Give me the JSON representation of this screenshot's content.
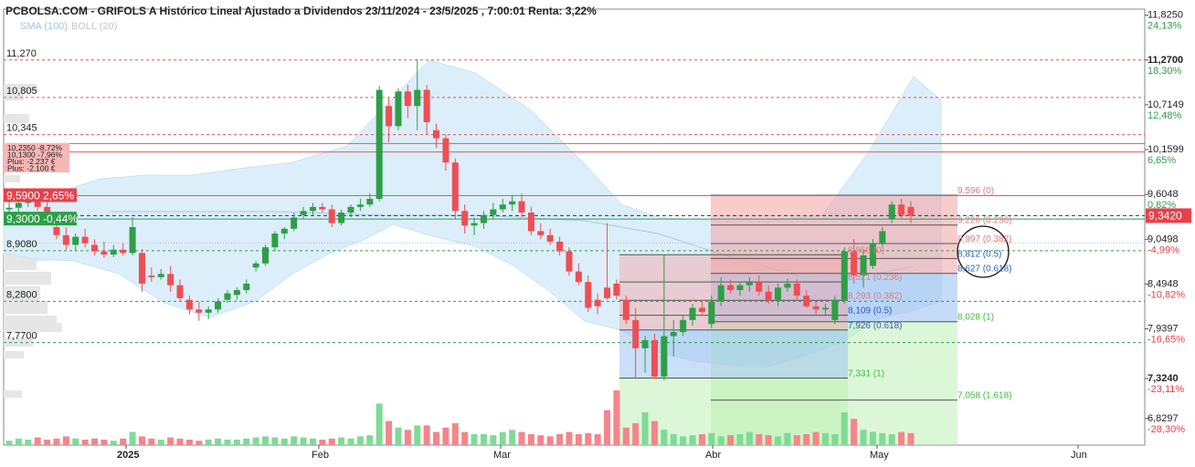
{
  "header": {
    "title": "PCBOLSA.COM - GRIFOLS A Histórico Lineal Ajustado a Dividendos 23/11/2024 - 23/5/2025 , 7:00:01 Renta: 3,22%",
    "indicator_sma": "SMA (100)",
    "indicator_boll": "BOLL (20)"
  },
  "colors": {
    "up": "#2e9e48",
    "down": "#ee4e54",
    "boll_fill": "#dceefa",
    "fib_red": "#f4a3a3",
    "fib_blue": "#9fc3f1",
    "fib_green": "#b9efb0",
    "price_badge": "#e8404a",
    "green_badge": "#2e9e48"
  },
  "chart_data": {
    "type": "candlestick",
    "ylim": [
      6.5,
      11.9
    ],
    "right_axis": {
      "prices": [
        "11,8250",
        "11,2700",
        "10,7149",
        "10,1599",
        "9,6048",
        "9,0498",
        "8,4948",
        "7,9397",
        "7,3240",
        "6,8297"
      ],
      "percents": [
        "24,13%",
        "18,30%",
        "12,48%",
        "6,65%",
        "0,82%",
        "-4,99%",
        "-10,82%",
        "-16,65%",
        "-23,11%",
        "-28,30%"
      ],
      "current_price": "9,3420"
    },
    "x_axis_labels": [
      "2025",
      "Feb",
      "Mar",
      "Abr",
      "May",
      "Jun"
    ],
    "left_levels": [
      "11,270",
      "10,805",
      "10,345",
      "8,9080",
      "8,2800",
      "7,7700"
    ],
    "left_badges": [
      {
        "label": "9,5900 2,65%",
        "color": "red"
      },
      {
        "label": "9,3000 -0,44%",
        "color": "green"
      }
    ],
    "notes": [
      "10,2350 -8,72%",
      "10,1300 -7,96%",
      "Plus: -2.237 €",
      "Plus: -2.100 €"
    ],
    "fib_upper": [
      "9,596 (0)",
      "9,226 (0.236)",
      "8,997 (0.382)",
      "8,812 (0.5)",
      "8,627 (0.618)",
      "8,028 (1)",
      "7,058 (1.618)"
    ],
    "fib_lower": [
      "8,858 (0)",
      "8,521 (0.236)",
      "8,293 (0.382)",
      "8,109 (0.5)",
      "7,926 (0.618)",
      "7,331 (1)"
    ],
    "candles": [
      {
        "o": 9.42,
        "h": 9.55,
        "l": 9.32,
        "c": 9.44
      },
      {
        "o": 9.44,
        "h": 9.58,
        "l": 9.38,
        "c": 9.5
      },
      {
        "o": 9.5,
        "h": 9.62,
        "l": 9.45,
        "c": 9.55
      },
      {
        "o": 9.55,
        "h": 9.65,
        "l": 9.4,
        "c": 9.45
      },
      {
        "o": 9.45,
        "h": 9.52,
        "l": 9.25,
        "c": 9.3
      },
      {
        "o": 9.2,
        "h": 9.35,
        "l": 9.05,
        "c": 9.1
      },
      {
        "o": 9.1,
        "h": 9.2,
        "l": 8.92,
        "c": 8.98
      },
      {
        "o": 8.98,
        "h": 9.12,
        "l": 8.9,
        "c": 9.08
      },
      {
        "o": 9.08,
        "h": 9.18,
        "l": 8.95,
        "c": 9.0
      },
      {
        "o": 8.98,
        "h": 9.05,
        "l": 8.85,
        "c": 8.9
      },
      {
        "o": 8.9,
        "h": 9.02,
        "l": 8.82,
        "c": 8.86
      },
      {
        "o": 8.86,
        "h": 8.98,
        "l": 8.83,
        "c": 8.92
      },
      {
        "o": 8.92,
        "h": 9.0,
        "l": 8.85,
        "c": 8.88
      },
      {
        "o": 8.88,
        "h": 9.32,
        "l": 8.85,
        "c": 9.2
      },
      {
        "o": 8.88,
        "h": 8.93,
        "l": 8.4,
        "c": 8.5
      },
      {
        "o": 8.6,
        "h": 8.7,
        "l": 8.52,
        "c": 8.58
      },
      {
        "o": 8.58,
        "h": 8.68,
        "l": 8.55,
        "c": 8.62
      },
      {
        "o": 8.62,
        "h": 8.72,
        "l": 8.4,
        "c": 8.48
      },
      {
        "o": 8.48,
        "h": 8.55,
        "l": 8.28,
        "c": 8.32
      },
      {
        "o": 8.3,
        "h": 8.35,
        "l": 8.12,
        "c": 8.18
      },
      {
        "o": 8.18,
        "h": 8.28,
        "l": 8.04,
        "c": 8.14
      },
      {
        "o": 8.14,
        "h": 8.22,
        "l": 8.06,
        "c": 8.18
      },
      {
        "o": 8.18,
        "h": 8.32,
        "l": 8.14,
        "c": 8.28
      },
      {
        "o": 8.3,
        "h": 8.42,
        "l": 8.26,
        "c": 8.38
      },
      {
        "o": 8.36,
        "h": 8.45,
        "l": 8.3,
        "c": 8.42
      },
      {
        "o": 8.42,
        "h": 8.55,
        "l": 8.38,
        "c": 8.5
      },
      {
        "o": 8.7,
        "h": 8.78,
        "l": 8.65,
        "c": 8.75
      },
      {
        "o": 8.75,
        "h": 8.98,
        "l": 8.72,
        "c": 8.95
      },
      {
        "o": 8.95,
        "h": 9.15,
        "l": 8.9,
        "c": 9.12
      },
      {
        "o": 9.12,
        "h": 9.2,
        "l": 9.05,
        "c": 9.18
      },
      {
        "o": 9.18,
        "h": 9.38,
        "l": 9.15,
        "c": 9.32
      },
      {
        "o": 9.35,
        "h": 9.45,
        "l": 9.3,
        "c": 9.4
      },
      {
        "o": 9.4,
        "h": 9.5,
        "l": 9.35,
        "c": 9.45
      },
      {
        "o": 9.45,
        "h": 9.5,
        "l": 9.38,
        "c": 9.42
      },
      {
        "o": 9.42,
        "h": 9.48,
        "l": 9.2,
        "c": 9.25
      },
      {
        "o": 9.25,
        "h": 9.42,
        "l": 9.22,
        "c": 9.38
      },
      {
        "o": 9.38,
        "h": 9.48,
        "l": 9.32,
        "c": 9.45
      },
      {
        "o": 9.45,
        "h": 9.55,
        "l": 9.4,
        "c": 9.48
      },
      {
        "o": 9.48,
        "h": 9.62,
        "l": 9.45,
        "c": 9.55
      },
      {
        "o": 9.55,
        "h": 10.95,
        "l": 9.52,
        "c": 10.9
      },
      {
        "o": 10.7,
        "h": 10.8,
        "l": 10.25,
        "c": 10.45
      },
      {
        "o": 10.45,
        "h": 10.92,
        "l": 10.4,
        "c": 10.88
      },
      {
        "o": 10.88,
        "h": 10.96,
        "l": 10.55,
        "c": 10.7
      },
      {
        "o": 10.7,
        "h": 11.28,
        "l": 10.4,
        "c": 10.9
      },
      {
        "o": 10.9,
        "h": 10.96,
        "l": 10.35,
        "c": 10.5
      },
      {
        "o": 10.4,
        "h": 10.48,
        "l": 10.18,
        "c": 10.3
      },
      {
        "o": 10.3,
        "h": 10.35,
        "l": 9.9,
        "c": 10.0
      },
      {
        "o": 10.0,
        "h": 10.05,
        "l": 9.3,
        "c": 9.4
      },
      {
        "o": 9.4,
        "h": 9.48,
        "l": 9.12,
        "c": 9.22
      },
      {
        "o": 9.22,
        "h": 9.32,
        "l": 9.1,
        "c": 9.25
      },
      {
        "o": 9.25,
        "h": 9.4,
        "l": 9.18,
        "c": 9.35
      },
      {
        "o": 9.35,
        "h": 9.5,
        "l": 9.3,
        "c": 9.42
      },
      {
        "o": 9.42,
        "h": 9.55,
        "l": 9.38,
        "c": 9.48
      },
      {
        "o": 9.48,
        "h": 9.6,
        "l": 9.4,
        "c": 9.52
      },
      {
        "o": 9.52,
        "h": 9.62,
        "l": 9.32,
        "c": 9.38
      },
      {
        "o": 9.38,
        "h": 9.45,
        "l": 9.1,
        "c": 9.15
      },
      {
        "o": 9.15,
        "h": 9.25,
        "l": 9.05,
        "c": 9.1
      },
      {
        "o": 9.1,
        "h": 9.18,
        "l": 8.98,
        "c": 9.02
      },
      {
        "o": 9.02,
        "h": 9.08,
        "l": 8.85,
        "c": 8.9
      },
      {
        "o": 8.9,
        "h": 8.95,
        "l": 8.6,
        "c": 8.65
      },
      {
        "o": 8.65,
        "h": 8.75,
        "l": 8.48,
        "c": 8.52
      },
      {
        "o": 8.52,
        "h": 8.6,
        "l": 8.15,
        "c": 8.2
      },
      {
        "o": 8.3,
        "h": 8.38,
        "l": 8.12,
        "c": 8.22
      },
      {
        "o": 8.45,
        "h": 9.25,
        "l": 8.3,
        "c": 8.32
      },
      {
        "o": 8.5,
        "h": 8.55,
        "l": 8.3,
        "c": 8.35
      },
      {
        "o": 8.3,
        "h": 8.35,
        "l": 8.0,
        "c": 8.05
      },
      {
        "o": 8.05,
        "h": 8.2,
        "l": 7.33,
        "c": 7.7
      },
      {
        "o": 7.7,
        "h": 7.85,
        "l": 7.4,
        "c": 7.8
      },
      {
        "o": 7.8,
        "h": 7.88,
        "l": 7.32,
        "c": 7.35
      },
      {
        "o": 7.35,
        "h": 8.86,
        "l": 7.3,
        "c": 7.85
      },
      {
        "o": 7.85,
        "h": 8.05,
        "l": 7.6,
        "c": 7.9
      },
      {
        "o": 7.9,
        "h": 8.1,
        "l": 7.85,
        "c": 8.05
      },
      {
        "o": 8.05,
        "h": 8.25,
        "l": 7.98,
        "c": 8.2
      },
      {
        "o": 8.2,
        "h": 8.3,
        "l": 8.1,
        "c": 8.15
      },
      {
        "o": 8.0,
        "h": 8.35,
        "l": 7.95,
        "c": 8.28
      },
      {
        "o": 8.28,
        "h": 8.58,
        "l": 8.22,
        "c": 8.48
      },
      {
        "o": 8.48,
        "h": 8.55,
        "l": 8.38,
        "c": 8.42
      },
      {
        "o": 8.42,
        "h": 8.52,
        "l": 8.35,
        "c": 8.48
      },
      {
        "o": 8.48,
        "h": 8.58,
        "l": 8.4,
        "c": 8.52
      },
      {
        "o": 8.52,
        "h": 8.6,
        "l": 8.35,
        "c": 8.4
      },
      {
        "o": 8.4,
        "h": 8.48,
        "l": 8.25,
        "c": 8.3
      },
      {
        "o": 8.3,
        "h": 8.5,
        "l": 8.22,
        "c": 8.45
      },
      {
        "o": 8.45,
        "h": 8.56,
        "l": 8.4,
        "c": 8.5
      },
      {
        "o": 8.5,
        "h": 8.55,
        "l": 8.3,
        "c": 8.35
      },
      {
        "o": 8.35,
        "h": 8.42,
        "l": 8.2,
        "c": 8.22
      },
      {
        "o": 8.22,
        "h": 8.3,
        "l": 8.12,
        "c": 8.18
      },
      {
        "o": 8.18,
        "h": 8.25,
        "l": 8.1,
        "c": 8.2
      },
      {
        "o": 8.05,
        "h": 8.35,
        "l": 8.0,
        "c": 8.3
      },
      {
        "o": 8.3,
        "h": 8.95,
        "l": 8.25,
        "c": 8.9
      },
      {
        "o": 8.9,
        "h": 9.05,
        "l": 8.5,
        "c": 8.6
      },
      {
        "o": 8.6,
        "h": 8.92,
        "l": 8.45,
        "c": 8.85
      },
      {
        "o": 8.72,
        "h": 9.05,
        "l": 8.68,
        "c": 9.0
      },
      {
        "o": 9.0,
        "h": 9.2,
        "l": 8.95,
        "c": 9.15
      },
      {
        "o": 9.3,
        "h": 9.52,
        "l": 9.25,
        "c": 9.48
      },
      {
        "o": 9.48,
        "h": 9.55,
        "l": 9.3,
        "c": 9.35
      },
      {
        "o": 9.45,
        "h": 9.52,
        "l": 9.25,
        "c": 9.34
      }
    ]
  }
}
